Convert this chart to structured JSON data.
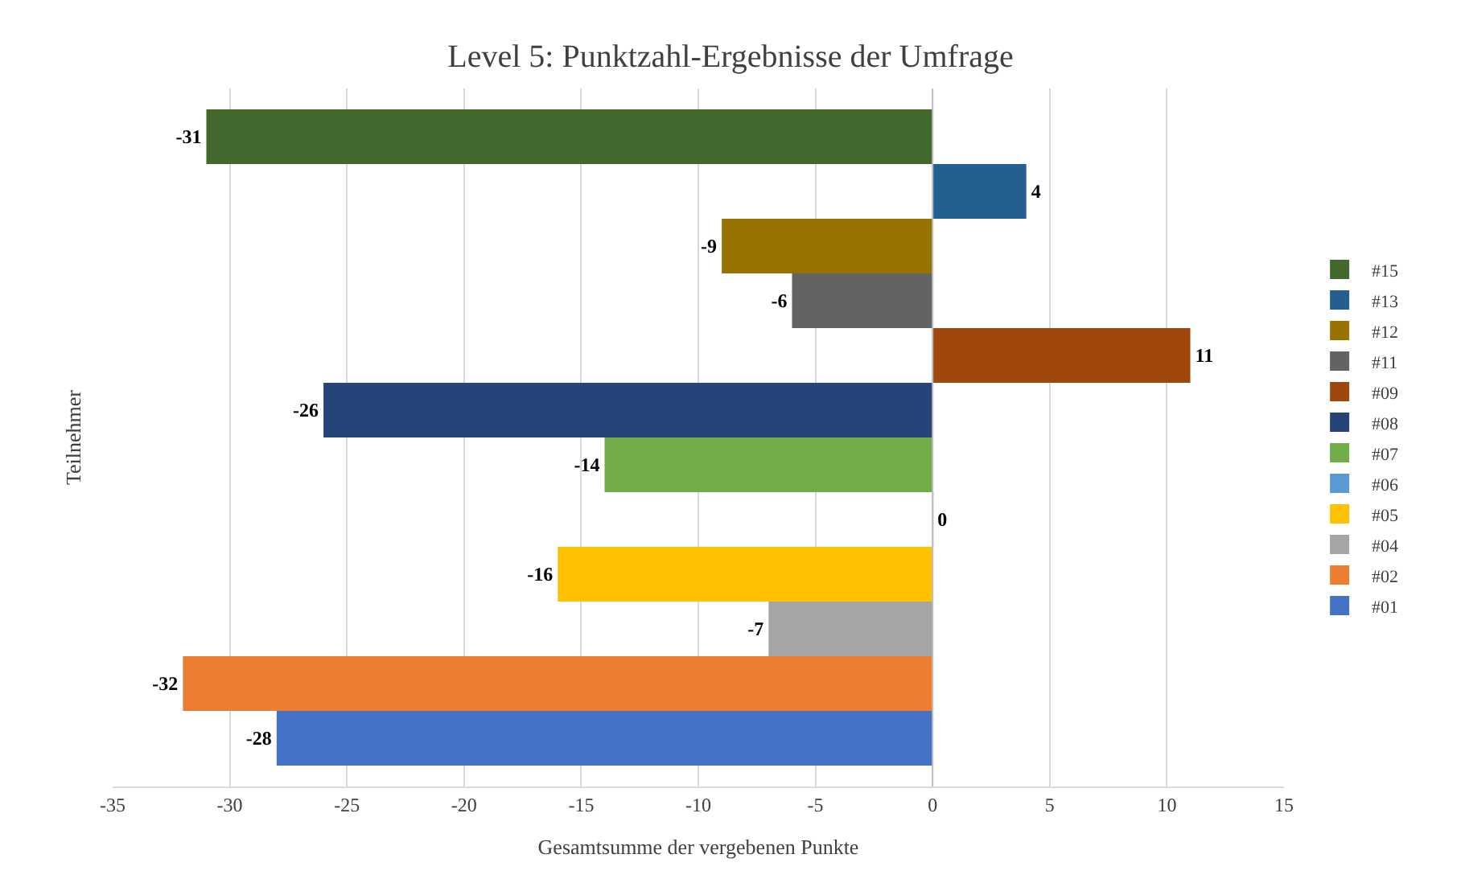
{
  "chart_data": {
    "type": "bar",
    "orientation": "horizontal",
    "title": "Level 5: Punktzahl-Ergebnisse der Umfrage",
    "xlabel": "Gesamtsumme der vergebenen Punkte",
    "ylabel": "Teilnehmer",
    "categories": [
      null
    ],
    "series": [
      {
        "name": "#01",
        "color": "#4472c4",
        "values": [
          -28
        ]
      },
      {
        "name": "#02",
        "color": "#ed7d31",
        "values": [
          -32
        ]
      },
      {
        "name": "#04",
        "color": "#a5a5a5",
        "values": [
          -7
        ]
      },
      {
        "name": "#05",
        "color": "#ffc000",
        "values": [
          -16
        ]
      },
      {
        "name": "#06",
        "color": "#5b9bd5",
        "values": [
          0
        ]
      },
      {
        "name": "#07",
        "color": "#70ad47",
        "values": [
          -14
        ]
      },
      {
        "name": "#08",
        "color": "#264478",
        "values": [
          -26
        ]
      },
      {
        "name": "#09",
        "color": "#9e480e",
        "values": [
          11
        ]
      },
      {
        "name": "#11",
        "color": "#636363",
        "values": [
          -6
        ]
      },
      {
        "name": "#12",
        "color": "#997300",
        "values": [
          -9
        ]
      },
      {
        "name": "#13",
        "color": "#255e91",
        "values": [
          4
        ]
      },
      {
        "name": "#15",
        "color": "#43682b",
        "values": [
          -31
        ]
      }
    ],
    "xlim": [
      -35,
      15
    ],
    "xticks": [
      -35,
      -30,
      -25,
      -20,
      -15,
      -10,
      -5,
      0,
      5,
      10,
      15
    ],
    "grid": "x",
    "legend": "right",
    "data_labels": true
  }
}
